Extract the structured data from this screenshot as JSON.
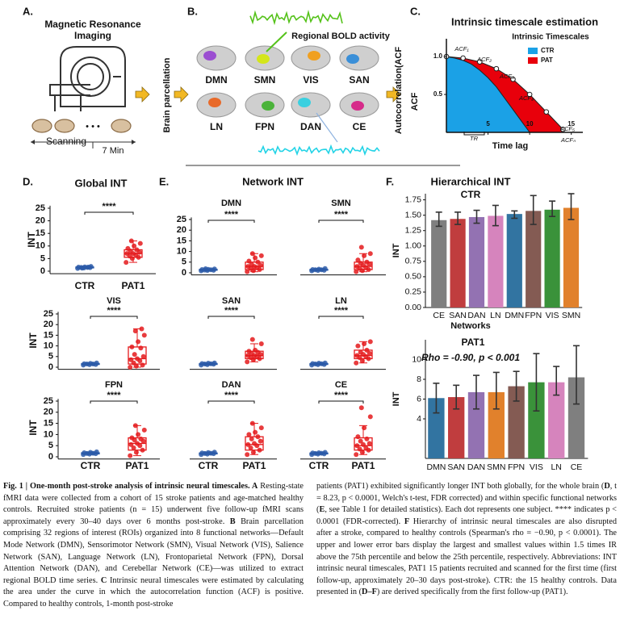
{
  "figure": {
    "panel_labels": [
      "A.",
      "B.",
      "C.",
      "D.",
      "E.",
      "F."
    ],
    "a": {
      "title_lines": [
        "Magnetic Resonance",
        "Imaging"
      ],
      "ellipsis": "• • •",
      "scanning": "Scanning",
      "duration": "7 Min"
    },
    "parcellation": "Brain parcellation",
    "b": {
      "networks": [
        "DMN",
        "SMN",
        "VIS",
        "SAN",
        "LN",
        "FPN",
        "DAN",
        "CE"
      ],
      "bold_label": "Regional BOLD activity"
    },
    "acf_label": "Autocorrelation(ACF",
    "e_title": "Network INT"
  },
  "chart_data": [
    {
      "type": "line",
      "title": "Intrinsic timescale estimation",
      "ylabel": "ACF",
      "xlabel": "Time lag",
      "legend_title": "Intrinsic Timescales",
      "xlim": [
        0,
        16
      ],
      "ylim": [
        0,
        1.15
      ],
      "xticks": [
        5,
        10,
        15
      ],
      "yticks": [
        {
          "value": 1,
          "label": "1.0"
        },
        0.5
      ],
      "series": [
        {
          "name": "PAT",
          "color": "#e8000b",
          "x": [
            0,
            2,
            4,
            6,
            8,
            10,
            12,
            14
          ],
          "values": [
            1.0,
            0.98,
            0.93,
            0.84,
            0.7,
            0.5,
            0.27,
            0.04
          ]
        },
        {
          "name": "CTR",
          "color": "#1ba1e6",
          "x": [
            0,
            1,
            2,
            3,
            4,
            5,
            6,
            7,
            8,
            9,
            10
          ],
          "values": [
            1.0,
            0.98,
            0.95,
            0.9,
            0.82,
            0.72,
            0.6,
            0.45,
            0.3,
            0.15,
            0.0
          ]
        }
      ],
      "annotations": [
        "ACF₁",
        "ACF₂",
        "ACF₃",
        "ACF₄",
        "ACF₅",
        "ACFₙ",
        "TR"
      ]
    },
    {
      "type": "box",
      "title": "Global  INT",
      "significance": "****",
      "ylabel": "INT",
      "categories": [
        "CTR",
        "PAT1"
      ],
      "colors": [
        "#2b5aa8",
        "#e41a1c"
      ],
      "ylim": [
        -1,
        26
      ],
      "yticks": [
        0,
        5,
        10,
        15,
        20,
        25
      ],
      "boxes": [
        {
          "min": 1.1,
          "q1": 1.3,
          "median": 1.5,
          "q3": 1.65,
          "max": 1.9,
          "points": [
            1.1,
            1.3,
            1.4,
            1.5,
            1.5,
            1.6,
            1.7,
            1.9,
            1.2,
            1.6
          ]
        },
        {
          "min": 3.5,
          "q1": 5.5,
          "median": 7,
          "q3": 8.5,
          "max": 12,
          "points": [
            3.5,
            5,
            5.5,
            6,
            6.5,
            7,
            7,
            7.5,
            8,
            8.5,
            9,
            10,
            11,
            12
          ]
        }
      ]
    },
    {
      "type": "box",
      "title": "DMN",
      "significance": "****",
      "categories": [
        null,
        null
      ],
      "colors": [
        "#2b5aa8",
        "#e41a1c"
      ],
      "ylim": [
        -1,
        26
      ],
      "yticks": [
        0,
        5,
        10,
        15,
        20,
        25
      ],
      "boxes": [
        {
          "min": 0.9,
          "q1": 1.2,
          "median": 1.4,
          "q3": 1.6,
          "max": 1.9,
          "points": [
            0.9,
            1.1,
            1.2,
            1.3,
            1.4,
            1.5,
            1.6,
            1.8,
            1.9
          ]
        },
        {
          "min": 0.5,
          "q1": 1.5,
          "median": 3,
          "q3": 5,
          "max": 9,
          "points": [
            0.5,
            1,
            1.5,
            2,
            2.5,
            3,
            3,
            3.5,
            4,
            5,
            5.5,
            7,
            8,
            9
          ]
        }
      ]
    },
    {
      "type": "box",
      "title": "SMN",
      "significance": "****",
      "categories": [
        null,
        null
      ],
      "colors": [
        "#2b5aa8",
        "#e41a1c"
      ],
      "ylim": [
        -1,
        26
      ],
      "boxes": [
        {
          "min": 0.9,
          "q1": 1.2,
          "median": 1.4,
          "q3": 1.6,
          "max": 2,
          "points": [
            0.9,
            1.1,
            1.2,
            1.4,
            1.4,
            1.5,
            1.7,
            2
          ]
        },
        {
          "min": 0.5,
          "q1": 1.5,
          "median": 3,
          "q3": 5,
          "max": 9,
          "points": [
            0.5,
            1,
            1.5,
            2,
            2.5,
            3,
            3.5,
            4,
            4.5,
            5,
            6,
            8,
            9,
            12
          ]
        }
      ]
    },
    {
      "type": "box",
      "title": "VIS",
      "significance": "****",
      "ylabel": "INT",
      "categories": [
        null,
        null
      ],
      "colors": [
        "#2b5aa8",
        "#e41a1c"
      ],
      "ylim": [
        -1,
        26
      ],
      "yticks": [
        0,
        5,
        10,
        15,
        20,
        25
      ],
      "boxes": [
        {
          "min": 1,
          "q1": 1.3,
          "median": 1.5,
          "q3": 1.7,
          "max": 2,
          "points": [
            1,
            1.2,
            1.3,
            1.5,
            1.5,
            1.6,
            1.8,
            2
          ]
        },
        {
          "min": 0,
          "q1": 1.5,
          "median": 4,
          "q3": 9.5,
          "max": 18,
          "points": [
            0,
            0.5,
            1,
            2,
            3,
            3.5,
            4,
            5,
            6,
            9,
            9.5,
            12,
            15,
            17,
            18
          ]
        }
      ]
    },
    {
      "type": "box",
      "title": "SAN",
      "significance": "****",
      "categories": [
        null,
        null
      ],
      "colors": [
        "#2b5aa8",
        "#e41a1c"
      ],
      "ylim": [
        -1,
        26
      ],
      "boxes": [
        {
          "min": 1,
          "q1": 1.3,
          "median": 1.5,
          "q3": 1.7,
          "max": 2,
          "points": [
            1,
            1.2,
            1.4,
            1.5,
            1.6,
            1.7,
            1.9,
            2
          ]
        },
        {
          "min": 2.5,
          "q1": 4,
          "median": 5.5,
          "q3": 7.5,
          "max": 11,
          "points": [
            2.5,
            3.5,
            4,
            4.5,
            5,
            5.5,
            5.5,
            6,
            6.5,
            7,
            7.5,
            8,
            11,
            13
          ]
        }
      ]
    },
    {
      "type": "box",
      "title": "LN",
      "significance": "****",
      "categories": [
        null,
        null
      ],
      "colors": [
        "#2b5aa8",
        "#e41a1c"
      ],
      "ylim": [
        -1,
        26
      ],
      "boxes": [
        {
          "min": 1,
          "q1": 1.3,
          "median": 1.5,
          "q3": 1.7,
          "max": 2,
          "points": [
            1,
            1.2,
            1.3,
            1.5,
            1.6,
            1.7,
            1.9,
            2
          ]
        },
        {
          "min": 2,
          "q1": 4,
          "median": 5.5,
          "q3": 8,
          "max": 12,
          "points": [
            2,
            3,
            4,
            4.5,
            5,
            5.5,
            6,
            6.5,
            7,
            8,
            10,
            11,
            12
          ]
        }
      ]
    },
    {
      "type": "box",
      "title": "FPN",
      "significance": "****",
      "ylabel": "INT",
      "categories": [
        "CTR",
        "PAT1"
      ],
      "colors": [
        "#2b5aa8",
        "#e41a1c"
      ],
      "ylim": [
        -1,
        26
      ],
      "yticks": [
        0,
        5,
        10,
        15,
        20,
        25
      ],
      "boxes": [
        {
          "min": 1,
          "q1": 1.3,
          "median": 1.5,
          "q3": 1.8,
          "max": 2.2,
          "points": [
            1,
            1.2,
            1.4,
            1.5,
            1.6,
            1.8,
            2,
            2.2
          ]
        },
        {
          "min": 0.5,
          "q1": 3,
          "median": 6,
          "q3": 8.5,
          "max": 14,
          "points": [
            0.5,
            2,
            3,
            4,
            5,
            5.5,
            6,
            7,
            7.5,
            8,
            8.5,
            10,
            12,
            14
          ]
        }
      ]
    },
    {
      "type": "box",
      "title": "DAN",
      "significance": "****",
      "categories": [
        "CTR",
        "PAT1"
      ],
      "colors": [
        "#2b5aa8",
        "#e41a1c"
      ],
      "ylim": [
        -1,
        26
      ],
      "boxes": [
        {
          "min": 1,
          "q1": 1.3,
          "median": 1.5,
          "q3": 1.7,
          "max": 2.1,
          "points": [
            1,
            1.2,
            1.4,
            1.5,
            1.6,
            1.7,
            1.9,
            2.1
          ]
        },
        {
          "min": 1,
          "q1": 3,
          "median": 5.5,
          "q3": 9,
          "max": 15,
          "points": [
            1,
            2,
            3,
            4,
            5,
            5.5,
            6,
            7,
            8,
            9,
            10,
            11,
            13,
            15
          ]
        }
      ]
    },
    {
      "type": "box",
      "title": "CE",
      "significance": "****",
      "categories": [
        "CTR",
        "PAT1"
      ],
      "colors": [
        "#2b5aa8",
        "#e41a1c"
      ],
      "ylim": [
        -1,
        26
      ],
      "boxes": [
        {
          "min": 1,
          "q1": 1.3,
          "median": 1.5,
          "q3": 1.7,
          "max": 2,
          "points": [
            1,
            1.2,
            1.3,
            1.5,
            1.6,
            1.7,
            1.8,
            2
          ]
        },
        {
          "min": 1,
          "q1": 3,
          "median": 5,
          "q3": 8.5,
          "max": 14,
          "points": [
            1,
            2,
            3,
            3.5,
            4,
            5,
            5.5,
            6,
            7,
            8,
            9,
            13,
            18,
            22
          ]
        }
      ]
    },
    {
      "type": "bar",
      "title": "Hierarchical INT",
      "subtitle": "CTR",
      "xlabel": "Networks",
      "ylabel": "INT",
      "categories": [
        "CE",
        "SAN",
        "DAN",
        "LN",
        "DMN",
        "FPN",
        "VIS",
        "SMN"
      ],
      "values": [
        1.42,
        1.44,
        1.47,
        1.49,
        1.52,
        1.57,
        1.59,
        1.62
      ],
      "lower": [
        1.32,
        1.35,
        1.37,
        1.33,
        1.45,
        1.35,
        1.48,
        1.43
      ],
      "upper": [
        1.55,
        1.55,
        1.58,
        1.66,
        1.57,
        1.82,
        1.73,
        1.85
      ],
      "colors": [
        "#7f7f7f",
        "#c03d3e",
        "#9372b2",
        "#d684bd",
        "#3274a1",
        "#845b53",
        "#3a923a",
        "#e1812c"
      ],
      "ylim": [
        0,
        1.85
      ],
      "yticks": [
        {
          "value": 0,
          "label": "0.00"
        },
        {
          "value": 0.25,
          "label": "0.25"
        },
        {
          "value": 0.5,
          "label": "0.50"
        },
        {
          "value": 0.75,
          "label": "0.75"
        },
        {
          "value": 1,
          "label": "1.00"
        },
        {
          "value": 1.25,
          "label": "1.25"
        },
        {
          "value": 1.5,
          "label": "1.50"
        },
        {
          "value": 1.75,
          "label": "1.75"
        }
      ]
    },
    {
      "type": "bar",
      "subtitle": "PAT1",
      "ylabel": "INT",
      "annotation": "Rho = -0.90, p < 0.001",
      "categories": [
        "DMN",
        "SAN",
        "DAN",
        "SMN",
        "FPN",
        "VIS",
        "LN",
        "CE"
      ],
      "values": [
        6.1,
        6.2,
        6.7,
        6.7,
        7.3,
        7.7,
        7.7,
        8.2
      ],
      "lower": [
        4.6,
        5.0,
        5.0,
        5.0,
        5.8,
        4.8,
        6.4,
        5.5
      ],
      "upper": [
        7.6,
        7.4,
        8.4,
        8.7,
        8.8,
        10.6,
        9.3,
        11.4
      ],
      "colors": [
        "#3274a1",
        "#c03d3e",
        "#9372b2",
        "#e1812c",
        "#845b53",
        "#3a923a",
        "#d684bd",
        "#7f7f7f"
      ],
      "ylim": [
        0,
        12
      ],
      "yticks": [
        4,
        6,
        8,
        10
      ]
    }
  ],
  "caption": {
    "left": [
      {
        "text": "Fig. 1 | One-month post-stroke analysis of intrinsic neural timescales. A",
        "bold": true
      },
      {
        "text": " Resting-state fMRI data were collected from a cohort of 15 stroke patients and age-matched healthy controls. Recruited stroke patients (n = 15) underwent five follow-up fMRI scans approximately every 30–40 days over 6 months post-stroke. "
      },
      {
        "text": "B",
        "bold": true
      },
      {
        "text": " Brain parcellation comprising 32 regions of interest (ROIs) organized into 8 functional networks—Default Mode Network (DMN), Sensorimotor Network (SMN), Visual Network (VIS), Salience Network (SAN), Language Network (LN), Frontoparietal Network (FPN), Dorsal Attention Network (DAN), and Cerebellar Network (CE)—was utilized to extract regional BOLD time series. "
      },
      {
        "text": "C",
        "bold": true
      },
      {
        "text": " Intrinsic neural timescales were estimated by calculating the area under the curve in which the autocorrelation function (ACF) is positive. Compared to healthy controls, 1-month post-stroke"
      }
    ],
    "right": [
      {
        "text": "patients (PAT1) exhibited significantly longer INT both globally, for the whole brain ("
      },
      {
        "text": "D",
        "bold": true
      },
      {
        "text": ", t = 8.23, p < 0.0001, Welch's t-test, FDR corrected) and within specific functional networks ("
      },
      {
        "text": "E",
        "bold": true
      },
      {
        "text": ", see Table 1 for detailed statistics). Each dot represents one subject. **** indicates p < 0.0001 (FDR-corrected). "
      },
      {
        "text": "F",
        "bold": true
      },
      {
        "text": " Hierarchy of intrinsic neural timescales are also disrupted after a stroke, compared to healthy controls (Spearman's rho = −0.90, p < 0.0001). The upper and lower error bars display the largest and smallest values within 1.5 times IR above the 75th percentile and below the 25th percentile, respectively. Abbreviations: INT intrinsic neural timescales, PAT1 15 patients recruited and scanned for the first time (first follow-up, approximately 20–30 days post-stroke). CTR: the 15 healthy controls. Data presented in ("
      },
      {
        "text": "D–F",
        "bold": true
      },
      {
        "text": ") are derived specifically from the first follow-up (PAT1)."
      }
    ]
  }
}
